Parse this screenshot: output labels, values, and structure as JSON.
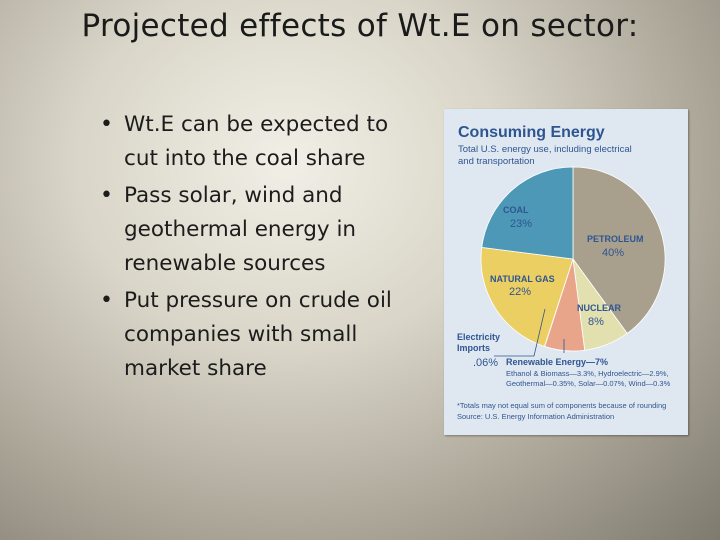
{
  "slide": {
    "title": "Projected effects of Wt.E on sector:",
    "bullet_glyph": "•",
    "bullets": [
      "Wt.E can be expected to cut into the coal share",
      "Pass solar, wind and geothermal energy in renewable sources",
      "Put pressure on crude oil companies with small market share"
    ]
  },
  "chart_data": {
    "type": "pie",
    "title": "Consuming Energy",
    "subtitle_line1": "Total U.S. energy use, including electrical",
    "subtitle_line2": "and transportation",
    "slices": [
      {
        "name": "PETROLEUM",
        "label": "40%",
        "value": 40,
        "color": "#a8a08c"
      },
      {
        "name": "NUCLEAR",
        "label": "8%",
        "value": 8,
        "color": "#e3e0b0"
      },
      {
        "name": "Renewable Energy",
        "label": "7%",
        "value": 7,
        "color": "#e9a58a"
      },
      {
        "name": "Electricity Imports",
        "label": ".06%",
        "value": 0.06,
        "color": "#b14a3a"
      },
      {
        "name": "NATURAL GAS",
        "label": "22%",
        "value": 22,
        "color": "#eccf62"
      },
      {
        "name": "COAL",
        "label": "23%",
        "value": 23,
        "color": "#4d98b7"
      }
    ],
    "annotations": {
      "electricity_label_line1": "Electricity",
      "electricity_label_line2": "Imports",
      "renewable_title": "Renewable Energy—7%",
      "renewable_detail_line1": "Ethanol & Biomass—3.3%, Hydroelectric—2.9%,",
      "renewable_detail_line2": "Geothermal—0.35%, Solar—0.07%, Wind—0.3%",
      "footnote_line1": "*Totals may not equal sum of components because of rounding",
      "footnote_line2": "Source: U.S. Energy Information Administration"
    }
  }
}
